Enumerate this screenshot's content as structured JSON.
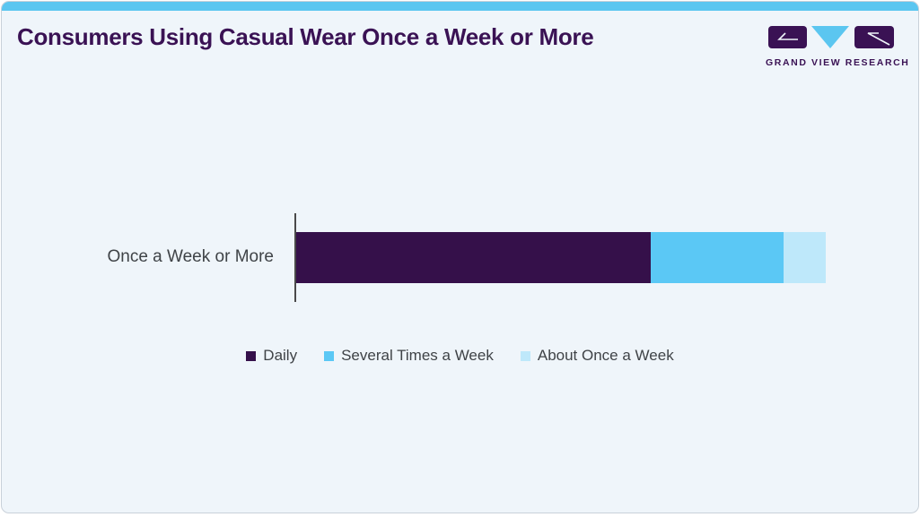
{
  "header": {
    "title": "Consumers Using Casual Wear Once a Week or More",
    "brand": "GRAND VIEW RESEARCH"
  },
  "colors": {
    "accent_strip": "#5BC6F0",
    "card_background": "#EFF5FA",
    "card_border": "#C9D1D9",
    "title_purple": "#3A1254",
    "axis_line": "#4A4A4A",
    "label_text": "#3F4347"
  },
  "chart_data": {
    "type": "bar",
    "orientation": "horizontal",
    "stacked": true,
    "title": "Consumers Using Casual Wear Once a Week or More",
    "categories": [
      "Once a Week or More"
    ],
    "series": [
      {
        "name": "Daily",
        "values": [
          67
        ],
        "color": "#35104A"
      },
      {
        "name": "Several Times a Week",
        "values": [
          25
        ],
        "color": "#5BC8F5"
      },
      {
        "name": "About Once a Week",
        "values": [
          8
        ],
        "color": "#BEE8FA"
      }
    ],
    "xlabel": "",
    "ylabel": "",
    "xlim": [
      0,
      100
    ],
    "grid": false,
    "legend_position": "bottom"
  }
}
